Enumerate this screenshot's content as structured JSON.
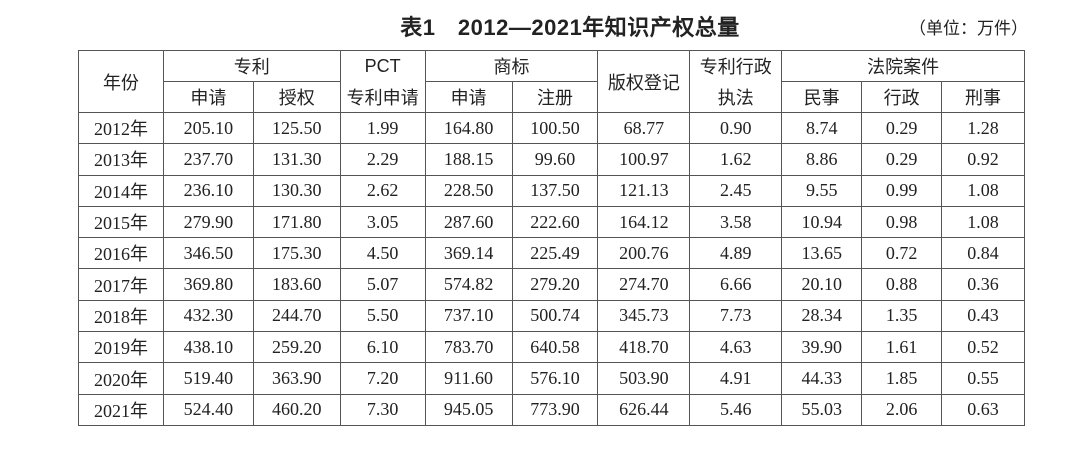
{
  "header": {
    "title": "表1　2012—2021年知识产权总量",
    "unit": "（单位：万件）"
  },
  "table": {
    "header_top": [
      "年份",
      "专利",
      "PCT",
      "商标",
      "版权登记",
      "专利行政",
      "法院案件"
    ],
    "header_bottom": [
      "申请",
      "授权",
      "专利申请",
      "申请",
      "注册",
      "执法",
      "民事",
      "行政",
      "刑事"
    ],
    "rows": [
      [
        "2012年",
        "205.10",
        "125.50",
        "1.99",
        "164.80",
        "100.50",
        "68.77",
        "0.90",
        "8.74",
        "0.29",
        "1.28"
      ],
      [
        "2013年",
        "237.70",
        "131.30",
        "2.29",
        "188.15",
        "99.60",
        "100.97",
        "1.62",
        "8.86",
        "0.29",
        "0.92"
      ],
      [
        "2014年",
        "236.10",
        "130.30",
        "2.62",
        "228.50",
        "137.50",
        "121.13",
        "2.45",
        "9.55",
        "0.99",
        "1.08"
      ],
      [
        "2015年",
        "279.90",
        "171.80",
        "3.05",
        "287.60",
        "222.60",
        "164.12",
        "3.58",
        "10.94",
        "0.98",
        "1.08"
      ],
      [
        "2016年",
        "346.50",
        "175.30",
        "4.50",
        "369.14",
        "225.49",
        "200.76",
        "4.89",
        "13.65",
        "0.72",
        "0.84"
      ],
      [
        "2017年",
        "369.80",
        "183.60",
        "5.07",
        "574.82",
        "279.20",
        "274.70",
        "6.66",
        "20.10",
        "0.88",
        "0.36"
      ],
      [
        "2018年",
        "432.30",
        "244.70",
        "5.50",
        "737.10",
        "500.74",
        "345.73",
        "7.73",
        "28.34",
        "1.35",
        "0.43"
      ],
      [
        "2019年",
        "438.10",
        "259.20",
        "6.10",
        "783.70",
        "640.58",
        "418.70",
        "4.63",
        "39.90",
        "1.61",
        "0.52"
      ],
      [
        "2020年",
        "519.40",
        "363.90",
        "7.20",
        "911.60",
        "576.10",
        "503.90",
        "4.91",
        "44.33",
        "1.85",
        "0.55"
      ],
      [
        "2021年",
        "524.40",
        "460.20",
        "7.30",
        "945.05",
        "773.90",
        "626.44",
        "5.46",
        "55.03",
        "2.06",
        "0.63"
      ]
    ]
  }
}
